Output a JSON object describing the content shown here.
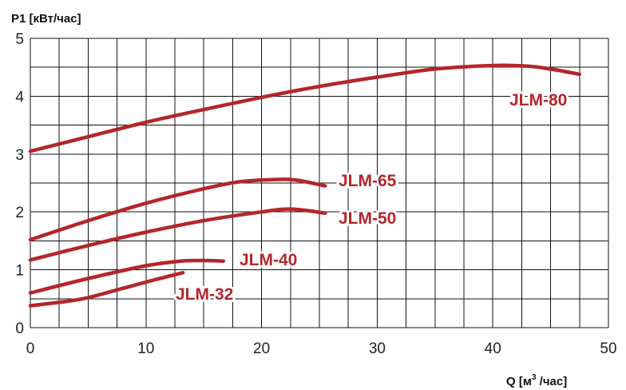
{
  "chart_data": {
    "type": "line",
    "ylabel": "P1 [кВт/час]",
    "xlabel_prefix": "Q [м",
    "xlabel_sup": "3",
    "xlabel_suffix": " /час]",
    "xlim": [
      0,
      50
    ],
    "ylim": [
      0,
      5
    ],
    "x_ticks": [
      0,
      10,
      20,
      30,
      40,
      50
    ],
    "y_ticks": [
      0,
      1,
      2,
      3,
      4,
      5
    ],
    "grid": true,
    "series": [
      {
        "name": "JLM-80",
        "color": "#b3262c",
        "points": [
          [
            0,
            3.05
          ],
          [
            5,
            3.3
          ],
          [
            10,
            3.55
          ],
          [
            15,
            3.77
          ],
          [
            20,
            3.98
          ],
          [
            25,
            4.17
          ],
          [
            30,
            4.33
          ],
          [
            35,
            4.47
          ],
          [
            40,
            4.53
          ],
          [
            43,
            4.52
          ],
          [
            45,
            4.47
          ],
          [
            47.5,
            4.38
          ]
        ]
      },
      {
        "name": "JLM-65",
        "color": "#b3262c",
        "points": [
          [
            0,
            1.52
          ],
          [
            5,
            1.85
          ],
          [
            10,
            2.15
          ],
          [
            15,
            2.4
          ],
          [
            18,
            2.52
          ],
          [
            21,
            2.56
          ],
          [
            23,
            2.55
          ],
          [
            25.5,
            2.45
          ]
        ]
      },
      {
        "name": "JLM-50",
        "color": "#b3262c",
        "points": [
          [
            0,
            1.17
          ],
          [
            5,
            1.42
          ],
          [
            10,
            1.65
          ],
          [
            15,
            1.85
          ],
          [
            20,
            2.0
          ],
          [
            22.5,
            2.05
          ],
          [
            25.5,
            1.98
          ]
        ]
      },
      {
        "name": "JLM-40",
        "color": "#b3262c",
        "points": [
          [
            0,
            0.6
          ],
          [
            5,
            0.85
          ],
          [
            10,
            1.07
          ],
          [
            13,
            1.15
          ],
          [
            15,
            1.16
          ],
          [
            16.7,
            1.15
          ]
        ]
      },
      {
        "name": "JLM-32",
        "color": "#b3262c",
        "points": [
          [
            0,
            0.38
          ],
          [
            3,
            0.45
          ],
          [
            5,
            0.52
          ],
          [
            8,
            0.68
          ],
          [
            11,
            0.84
          ],
          [
            13.2,
            0.95
          ]
        ]
      }
    ]
  }
}
